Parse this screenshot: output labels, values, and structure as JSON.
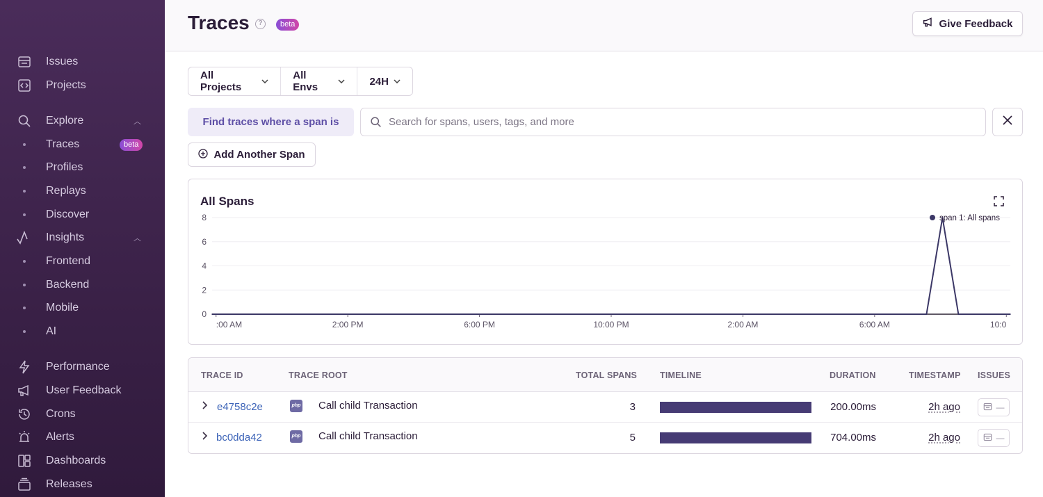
{
  "sidebar": {
    "items": [
      {
        "label": "Issues",
        "icon": "issues-icon"
      },
      {
        "label": "Projects",
        "icon": "projects-icon"
      },
      {
        "label": "Explore",
        "icon": "search-icon"
      },
      {
        "label": "Traces",
        "badge": "beta"
      },
      {
        "label": "Profiles"
      },
      {
        "label": "Replays"
      },
      {
        "label": "Discover"
      },
      {
        "label": "Insights",
        "icon": "insights-icon"
      },
      {
        "label": "Frontend"
      },
      {
        "label": "Backend"
      },
      {
        "label": "Mobile"
      },
      {
        "label": "AI"
      },
      {
        "label": "Performance",
        "icon": "lightning-icon"
      },
      {
        "label": "User Feedback",
        "icon": "megaphone-icon"
      },
      {
        "label": "Crons",
        "icon": "history-icon"
      },
      {
        "label": "Alerts",
        "icon": "siren-icon"
      },
      {
        "label": "Dashboards",
        "icon": "dashboard-icon"
      },
      {
        "label": "Releases",
        "icon": "releases-icon"
      }
    ]
  },
  "header": {
    "title": "Traces",
    "badge": "beta",
    "feedback_label": "Give Feedback"
  },
  "filters": {
    "projects": "All Projects",
    "envs": "All Envs",
    "period": "24H"
  },
  "query": {
    "label": "Find traces where a span is",
    "placeholder": "Search for spans, users, tags, and more",
    "add_span_label": "Add Another Span"
  },
  "chart": {
    "title": "All Spans"
  },
  "chart_data": {
    "type": "line",
    "title": "All Spans",
    "xlabel": "",
    "ylabel": "",
    "ylim": [
      0,
      8
    ],
    "yticks": [
      0,
      2,
      4,
      6,
      8
    ],
    "xtick_labels": [
      ":00 AM",
      "2:00 PM",
      "6:00 PM",
      "10:00 PM",
      "2:00 AM",
      "6:00 AM",
      "10:0"
    ],
    "series": [
      {
        "name": "span 1: All spans",
        "color": "#3b3766",
        "x": [
          0,
          0.05,
          0.1,
          0.15,
          0.2,
          0.25,
          0.3,
          0.35,
          0.4,
          0.45,
          0.5,
          0.55,
          0.6,
          0.65,
          0.7,
          0.75,
          0.8,
          0.85,
          0.895,
          0.915,
          0.935,
          0.955,
          0.975,
          1.0
        ],
        "values": [
          0,
          0,
          0,
          0,
          0,
          0,
          0,
          0,
          0,
          0,
          0,
          0,
          0,
          0,
          0,
          0,
          0,
          0,
          0,
          8,
          0,
          0,
          0,
          0
        ]
      }
    ]
  },
  "table": {
    "columns": [
      "TRACE ID",
      "TRACE ROOT",
      "TOTAL SPANS",
      "TIMELINE",
      "DURATION",
      "TIMESTAMP",
      "ISSUES"
    ],
    "rows": [
      {
        "trace_id": "e4758c2e",
        "platform": "php",
        "root": "Call child Transaction",
        "total_spans": "3",
        "timeline_fraction": 1.0,
        "duration": "200.00ms",
        "timestamp": "2h ago",
        "issues": "—"
      },
      {
        "trace_id": "bc0dda42",
        "platform": "php",
        "root": "Call child Transaction",
        "total_spans": "5",
        "timeline_fraction": 1.0,
        "duration": "704.00ms",
        "timestamp": "2h ago",
        "issues": "—"
      }
    ]
  },
  "colors": {
    "accent": "#5e4fa6",
    "link": "#3d64b8",
    "series": "#3b3766",
    "timeline": "#463b74"
  }
}
